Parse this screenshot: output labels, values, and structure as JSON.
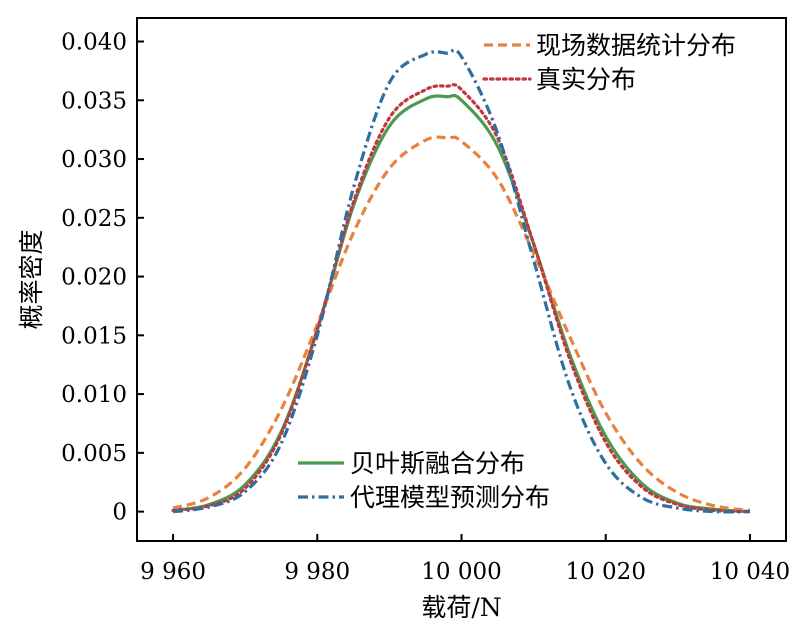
{
  "chart_data": {
    "type": "line",
    "title": "",
    "xlabel": "载荷/N",
    "ylabel": "概率密度",
    "xlim": [
      9955,
      10045
    ],
    "ylim": [
      -0.0025,
      0.042
    ],
    "x_ticks": [
      9960,
      9980,
      10000,
      10020,
      10040
    ],
    "x_tick_labels": [
      "9 960",
      "9 980",
      "10 000",
      "10 020",
      "10 040"
    ],
    "y_ticks": [
      0,
      0.005,
      0.01,
      0.015,
      0.02,
      0.025,
      0.03,
      0.035,
      0.04
    ],
    "y_tick_labels": [
      "0",
      "0.005",
      "0.010",
      "0.015",
      "0.020",
      "0.025",
      "0.030",
      "0.035",
      "0.040"
    ],
    "grid": false,
    "x": [
      9960,
      9965,
      9970,
      9975,
      9980,
      9985,
      9990,
      9995,
      9998,
      10000,
      10005,
      10010,
      10015,
      10020,
      10025,
      10030,
      10035,
      10040
    ],
    "series": [
      {
        "name": "现场数据统计分布",
        "color": "#e8823e",
        "dash": "dashed",
        "legend_group": "top-right",
        "values": [
          0.0003,
          0.0012,
          0.0037,
          0.0087,
          0.0159,
          0.0237,
          0.0292,
          0.0316,
          0.0318,
          0.0315,
          0.0283,
          0.022,
          0.0149,
          0.0084,
          0.004,
          0.0016,
          0.0005,
          0.0001
        ]
      },
      {
        "name": "真实分布",
        "color": "#c0383e",
        "dash": "dotted",
        "legend_group": "top-right",
        "values": [
          0.0001,
          0.0005,
          0.002,
          0.0066,
          0.0155,
          0.0263,
          0.0335,
          0.0359,
          0.0362,
          0.0359,
          0.0318,
          0.0228,
          0.013,
          0.0059,
          0.0021,
          0.0006,
          0.0001,
          0.0
        ]
      },
      {
        "name": "贝叶斯融合分布",
        "color": "#4c9a4f",
        "dash": "solid",
        "legend_group": "bottom-center",
        "values": [
          0.0001,
          0.0006,
          0.0023,
          0.0068,
          0.0155,
          0.026,
          0.0328,
          0.0351,
          0.0353,
          0.035,
          0.0311,
          0.0228,
          0.0134,
          0.0064,
          0.0024,
          0.0007,
          0.0002,
          0.0
        ]
      },
      {
        "name": "代理模型预测分布",
        "color": "#2f6e9e",
        "dash": "dashdot",
        "legend_group": "bottom-center",
        "values": [
          0.0,
          0.0004,
          0.0017,
          0.0058,
          0.015,
          0.0275,
          0.0365,
          0.0389,
          0.039,
          0.0387,
          0.0322,
          0.0214,
          0.0107,
          0.0041,
          0.0012,
          0.0003,
          0.0,
          0.0
        ]
      }
    ]
  }
}
